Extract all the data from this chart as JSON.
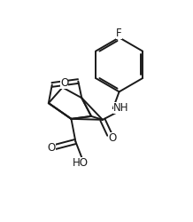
{
  "bg_color": "#ffffff",
  "line_color": "#1a1a1a",
  "lw": 1.4,
  "fs": 8.5,
  "xlim": [
    -0.05,
    1.05
  ],
  "ylim": [
    -0.05,
    1.15
  ]
}
